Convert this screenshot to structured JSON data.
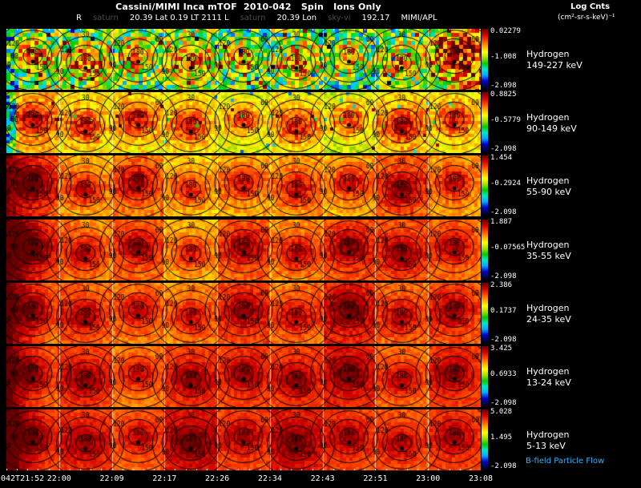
{
  "header": {
    "title": "Cassini/MIMI Inca mTOF  2010-042   Spin   Ions Only",
    "units_line1": "Log Cnts",
    "units_line2": "(cm²-sr-s-keV)⁻¹",
    "subtitle_parts": [
      {
        "text": "R",
        "ghost": false
      },
      {
        "text": "saturn",
        "ghost": true
      },
      {
        "text": "20.39 Lat 0.19 LT 2111 L",
        "ghost": false
      },
      {
        "text": "saturn",
        "ghost": true
      },
      {
        "text": "20.39 Lon",
        "ghost": false
      },
      {
        "text": "sky-vi",
        "ghost": true
      },
      {
        "text": "192.17",
        "ghost": false
      },
      {
        "text": "MIMI/APL",
        "ghost": false
      }
    ]
  },
  "chart_data": {
    "type": "heatmap",
    "title": "Cassini/MIMI Inca mTOF 2010-042 Spin Ions Only",
    "x_ticks": [
      "042T21:52",
      "22:00",
      "22:09",
      "22:17",
      "22:26",
      "22:34",
      "22:43",
      "22:51",
      "23:00",
      "23:08"
    ],
    "contour_levels": [
      30,
      60,
      90,
      120,
      150,
      180
    ],
    "palette": [
      "#000040",
      "#0000cc",
      "#00aaff",
      "#00e6cc",
      "#00cc00",
      "#aadd00",
      "#ffff00",
      "#ffaa00",
      "#ff4400",
      "#cc0000",
      "#660000"
    ],
    "rows": [
      {
        "species": "Hydrogen",
        "energy": "149-227 keV",
        "colorbar": {
          "top": "0.02279",
          "mid": "-1.008",
          "bottom": "-2.098"
        },
        "style": {
          "base": 0.42,
          "blob": 0.35,
          "noise": 0.27,
          "cell": 5,
          "speckle": 0.05,
          "left_cold": 1,
          "right_warm": 0.28
        }
      },
      {
        "species": "Hydrogen",
        "energy": "90-149 keV",
        "colorbar": {
          "top": "0.8825",
          "mid": "-0.5779",
          "bottom": "-2.098"
        },
        "style": {
          "base": 0.6,
          "blob": 0.28,
          "noise": 0.09,
          "cell": 4,
          "speckle": 0.02,
          "left_cold": 0.9
        }
      },
      {
        "species": "Hydrogen",
        "energy": "55-90 keV",
        "colorbar": {
          "top": "1.454",
          "mid": "-0.2924",
          "bottom": "-2.098"
        },
        "style": {
          "base": 0.71,
          "blob": 0.21,
          "noise": 0.06,
          "cell": 4,
          "left_dark": 0.22
        }
      },
      {
        "species": "Hydrogen",
        "energy": "35-55 keV",
        "colorbar": {
          "top": "1.887",
          "mid": "-0.07565",
          "bottom": "-2.098"
        },
        "style": {
          "base": 0.75,
          "blob": 0.2,
          "noise": 0.05,
          "cell": 4,
          "left_dark": 0.35
        }
      },
      {
        "species": "Hydrogen",
        "energy": "24-35 keV",
        "colorbar": {
          "top": "2.386",
          "mid": "0.1737",
          "bottom": "-2.098"
        },
        "style": {
          "base": 0.77,
          "blob": 0.18,
          "noise": 0.05,
          "cell": 4,
          "left_dark": 0.3
        }
      },
      {
        "species": "Hydrogen",
        "energy": "13-24 keV",
        "colorbar": {
          "top": "3.425",
          "mid": "0.6933",
          "bottom": "-2.098"
        },
        "style": {
          "base": 0.79,
          "blob": 0.17,
          "noise": 0.04,
          "cell": 4,
          "left_dark": 0.32
        }
      },
      {
        "species": "Hydrogen",
        "energy": "5-13 keV",
        "colorbar": {
          "top": "5.028",
          "mid": "1.495",
          "bottom": "-2.098"
        },
        "style": {
          "base": 0.81,
          "blob": 0.15,
          "noise": 0.04,
          "cell": 4,
          "left_dark": 0.35
        }
      }
    ],
    "footer_label": "B-field Particle Flow",
    "footer_color": "#2ab4ff"
  }
}
